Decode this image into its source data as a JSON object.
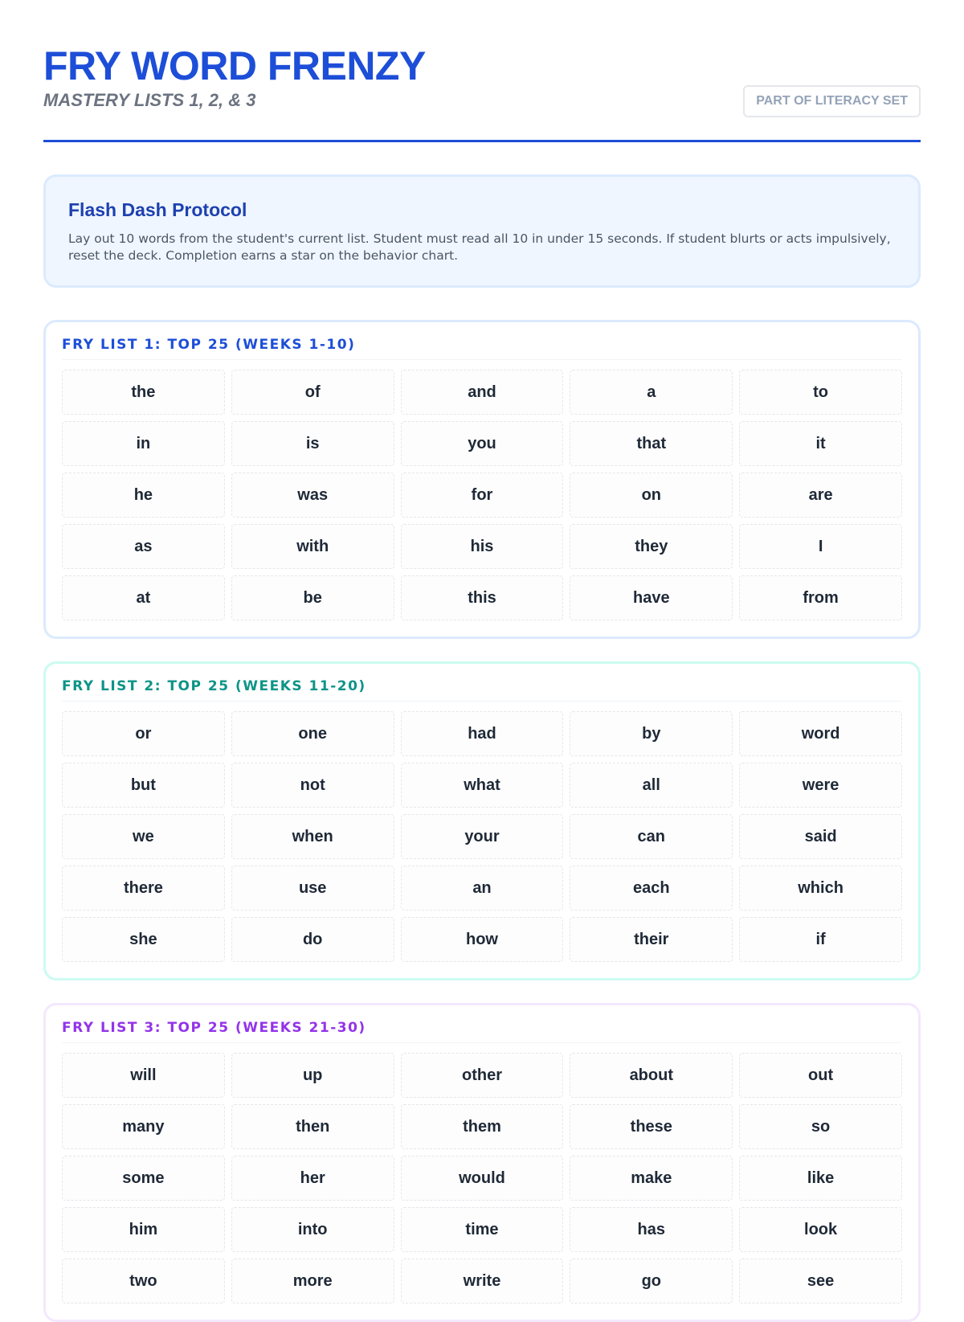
{
  "header": {
    "title": "FRY WORD FRENZY",
    "subtitle": "MASTERY LISTS 1, 2, & 3",
    "badge": "PART OF LITERACY SET"
  },
  "protocol": {
    "title": "Flash Dash Protocol",
    "text": "Lay out 10 words from the student's current list. Student must read all 10 in under 15 seconds. If student blurts or acts impulsively, reset the deck. Completion earns a star on the behavior chart."
  },
  "lists": [
    {
      "title": "FRY LIST 1: TOP 25 (WEEKS 1-10)",
      "words": [
        "the",
        "of",
        "and",
        "a",
        "to",
        "in",
        "is",
        "you",
        "that",
        "it",
        "he",
        "was",
        "for",
        "on",
        "are",
        "as",
        "with",
        "his",
        "they",
        "I",
        "at",
        "be",
        "this",
        "have",
        "from"
      ]
    },
    {
      "title": "FRY LIST 2: TOP 25 (WEEKS 11-20)",
      "words": [
        "or",
        "one",
        "had",
        "by",
        "word",
        "but",
        "not",
        "what",
        "all",
        "were",
        "we",
        "when",
        "your",
        "can",
        "said",
        "there",
        "use",
        "an",
        "each",
        "which",
        "she",
        "do",
        "how",
        "their",
        "if"
      ]
    },
    {
      "title": "FRY LIST 3: TOP 25 (WEEKS 21-30)",
      "words": [
        "will",
        "up",
        "other",
        "about",
        "out",
        "many",
        "then",
        "them",
        "these",
        "so",
        "some",
        "her",
        "would",
        "make",
        "like",
        "him",
        "into",
        "time",
        "has",
        "look",
        "two",
        "more",
        "write",
        "go",
        "see"
      ]
    }
  ]
}
